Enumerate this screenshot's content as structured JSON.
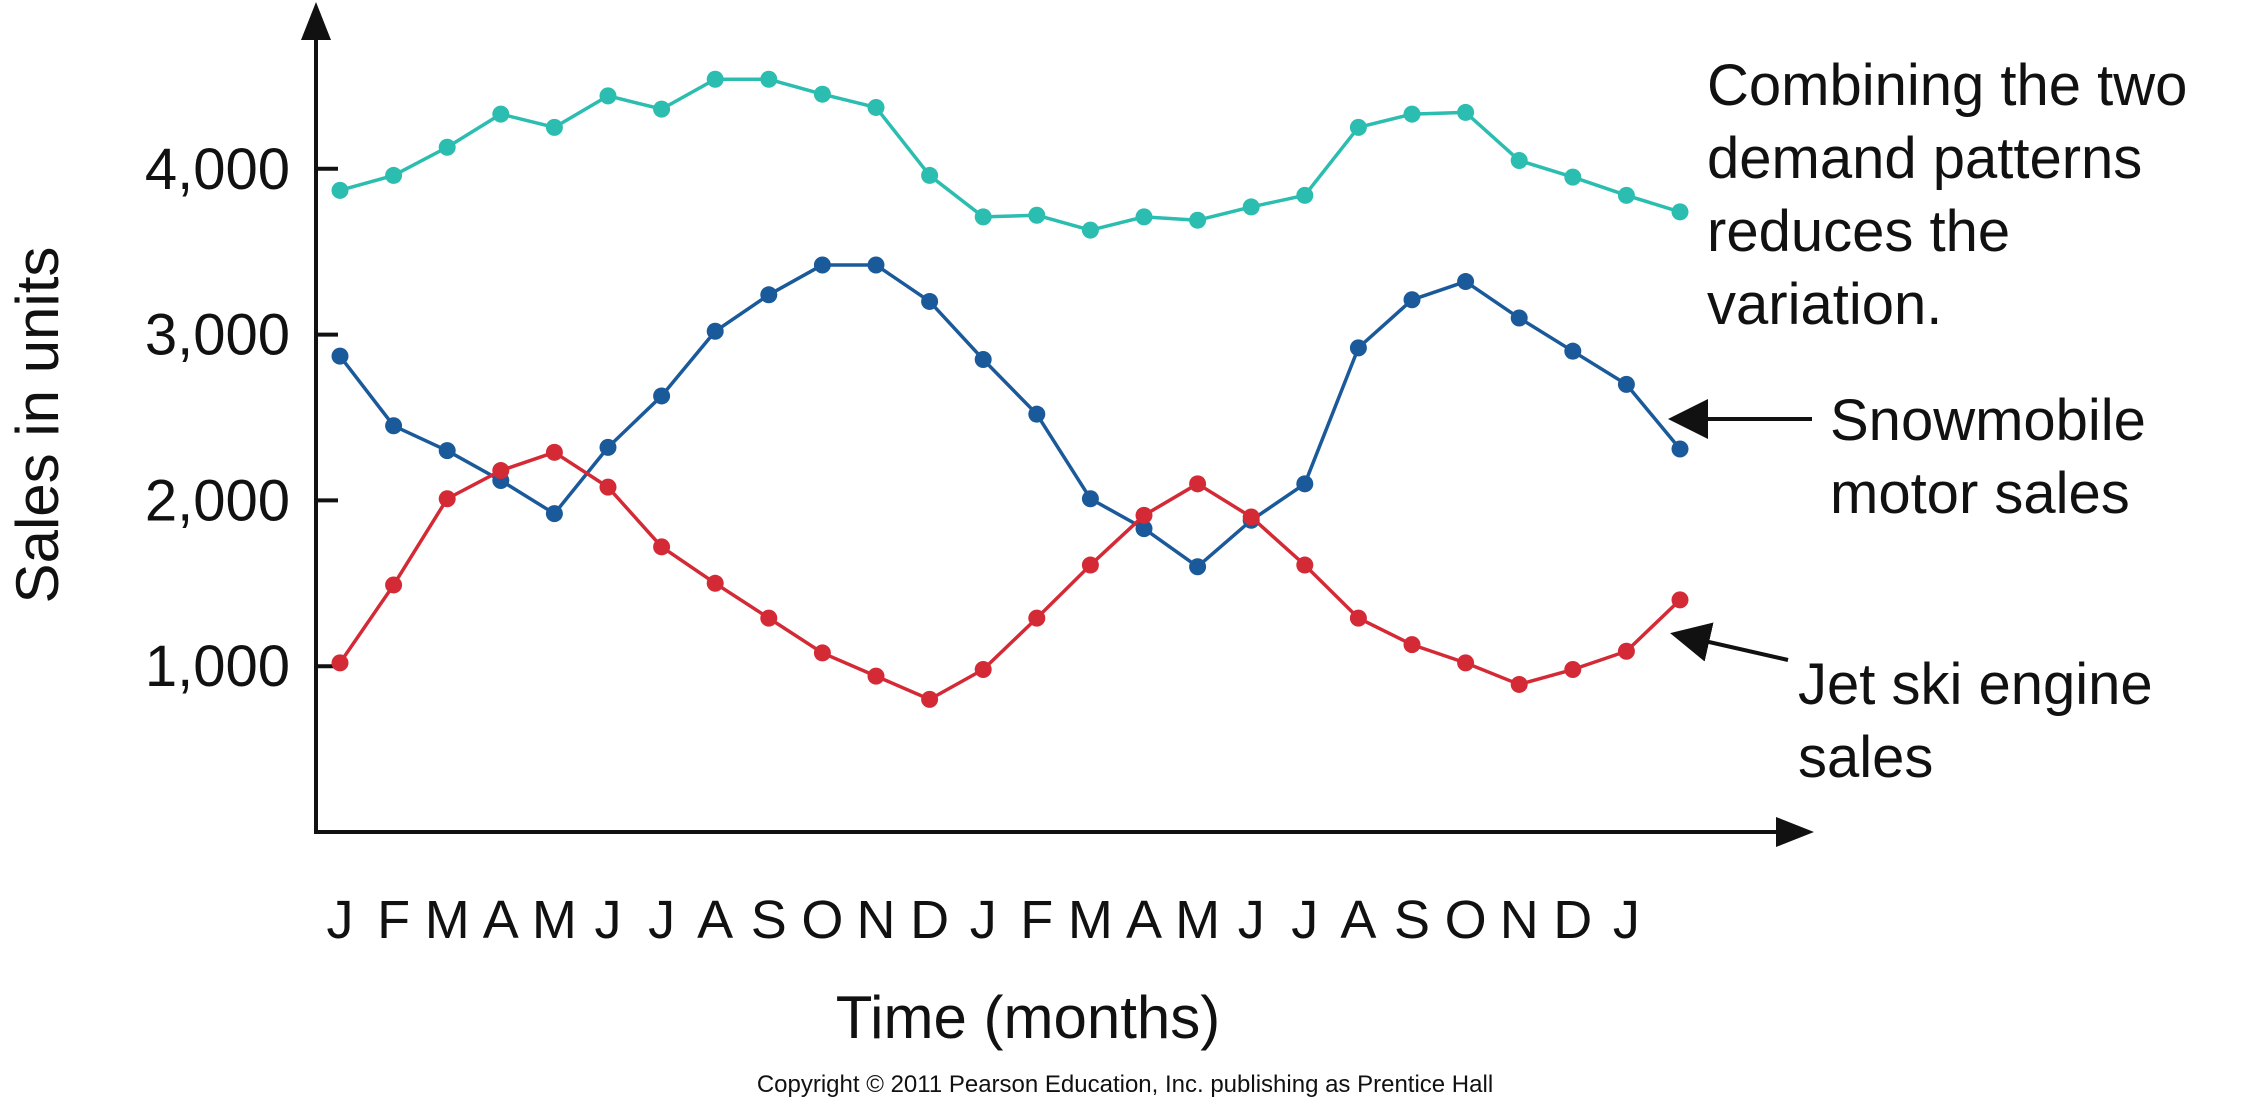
{
  "chart_data": {
    "type": "line",
    "title": "",
    "xlabel": "Time (months)",
    "ylabel": "Sales in units",
    "ylim": [
      0,
      5000
    ],
    "yticks": [
      1000,
      2000,
      3000,
      4000
    ],
    "ytick_labels": [
      "1,000",
      "2,000",
      "3,000",
      "4,000"
    ],
    "categories": [
      "J",
      "F",
      "M",
      "A",
      "M",
      "J",
      "J",
      "A",
      "S",
      "O",
      "N",
      "D",
      "J",
      "F",
      "M",
      "A",
      "M",
      "J",
      "J",
      "A",
      "S",
      "O",
      "N",
      "D",
      "J",
      ""
    ],
    "grid": false,
    "legend": "none",
    "series": [
      {
        "key": "combined",
        "color": "#2bbdb0",
        "values": [
          3870,
          3960,
          4130,
          4330,
          4250,
          4440,
          4360,
          4540,
          4540,
          4450,
          4370,
          3960,
          3710,
          3720,
          3630,
          3710,
          3690,
          3770,
          3840,
          4250,
          4330,
          4340,
          4050,
          3950,
          3840,
          3740
        ]
      },
      {
        "key": "snowmobile",
        "color": "#1a5a9a",
        "values": [
          2870,
          2450,
          2300,
          2120,
          1920,
          2320,
          2630,
          3020,
          3240,
          3420,
          3420,
          3200,
          2850,
          2520,
          2010,
          1830,
          1600,
          1880,
          2100,
          2920,
          3210,
          3320,
          3100,
          2900,
          2700,
          2310
        ]
      },
      {
        "key": "jetski",
        "color": "#d42a36",
        "values": [
          1020,
          1490,
          2010,
          2180,
          2290,
          2080,
          1720,
          1500,
          1290,
          1080,
          940,
          800,
          980,
          1290,
          1610,
          1910,
          2100,
          1900,
          1610,
          1290,
          1130,
          1020,
          890,
          980,
          1090,
          1400
        ]
      }
    ],
    "annotations": {
      "combined_lines": [
        "Combining the two",
        "demand patterns",
        "reduces the",
        "variation."
      ],
      "snowmobile_lines": [
        "Snowmobile",
        "motor sales"
      ],
      "jetski_lines": [
        "Jet ski engine",
        "sales"
      ]
    },
    "copyright": "Copyright © 2011 Pearson Education, Inc. publishing as Prentice Hall"
  }
}
